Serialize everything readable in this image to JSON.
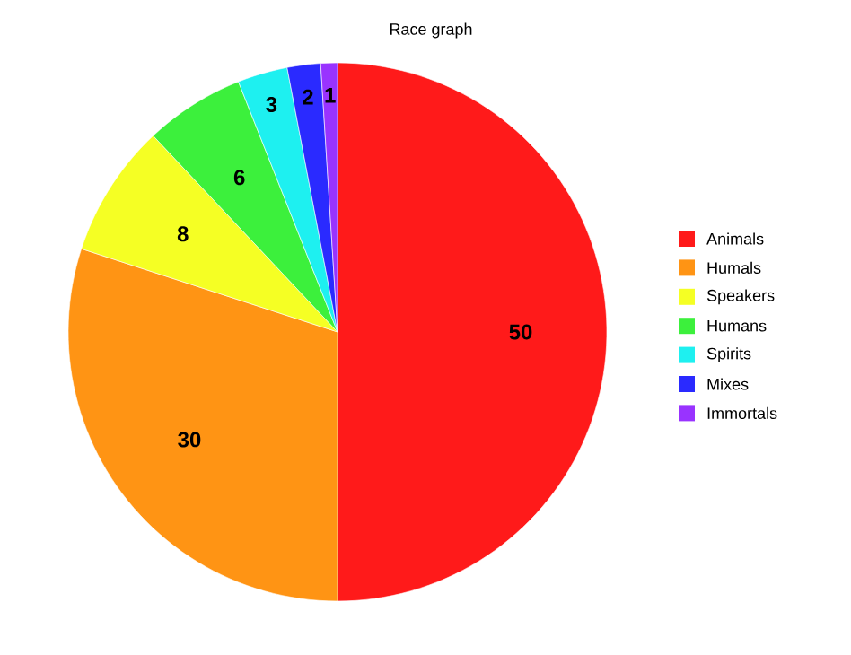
{
  "chart_data": {
    "type": "pie",
    "title": "Race graph",
    "categories": [
      "Animals",
      "Humals",
      "Speakers",
      "Humans",
      "Spirits",
      "Mixes",
      "Immortals"
    ],
    "values": [
      50,
      30,
      8,
      6,
      3,
      2,
      1
    ],
    "colors": [
      "#ff1a1a",
      "#ff9414",
      "#f5ff24",
      "#3cf03c",
      "#1ef0f0",
      "#2a2aff",
      "#9933ff"
    ],
    "data_labels": true,
    "legend": "right"
  }
}
